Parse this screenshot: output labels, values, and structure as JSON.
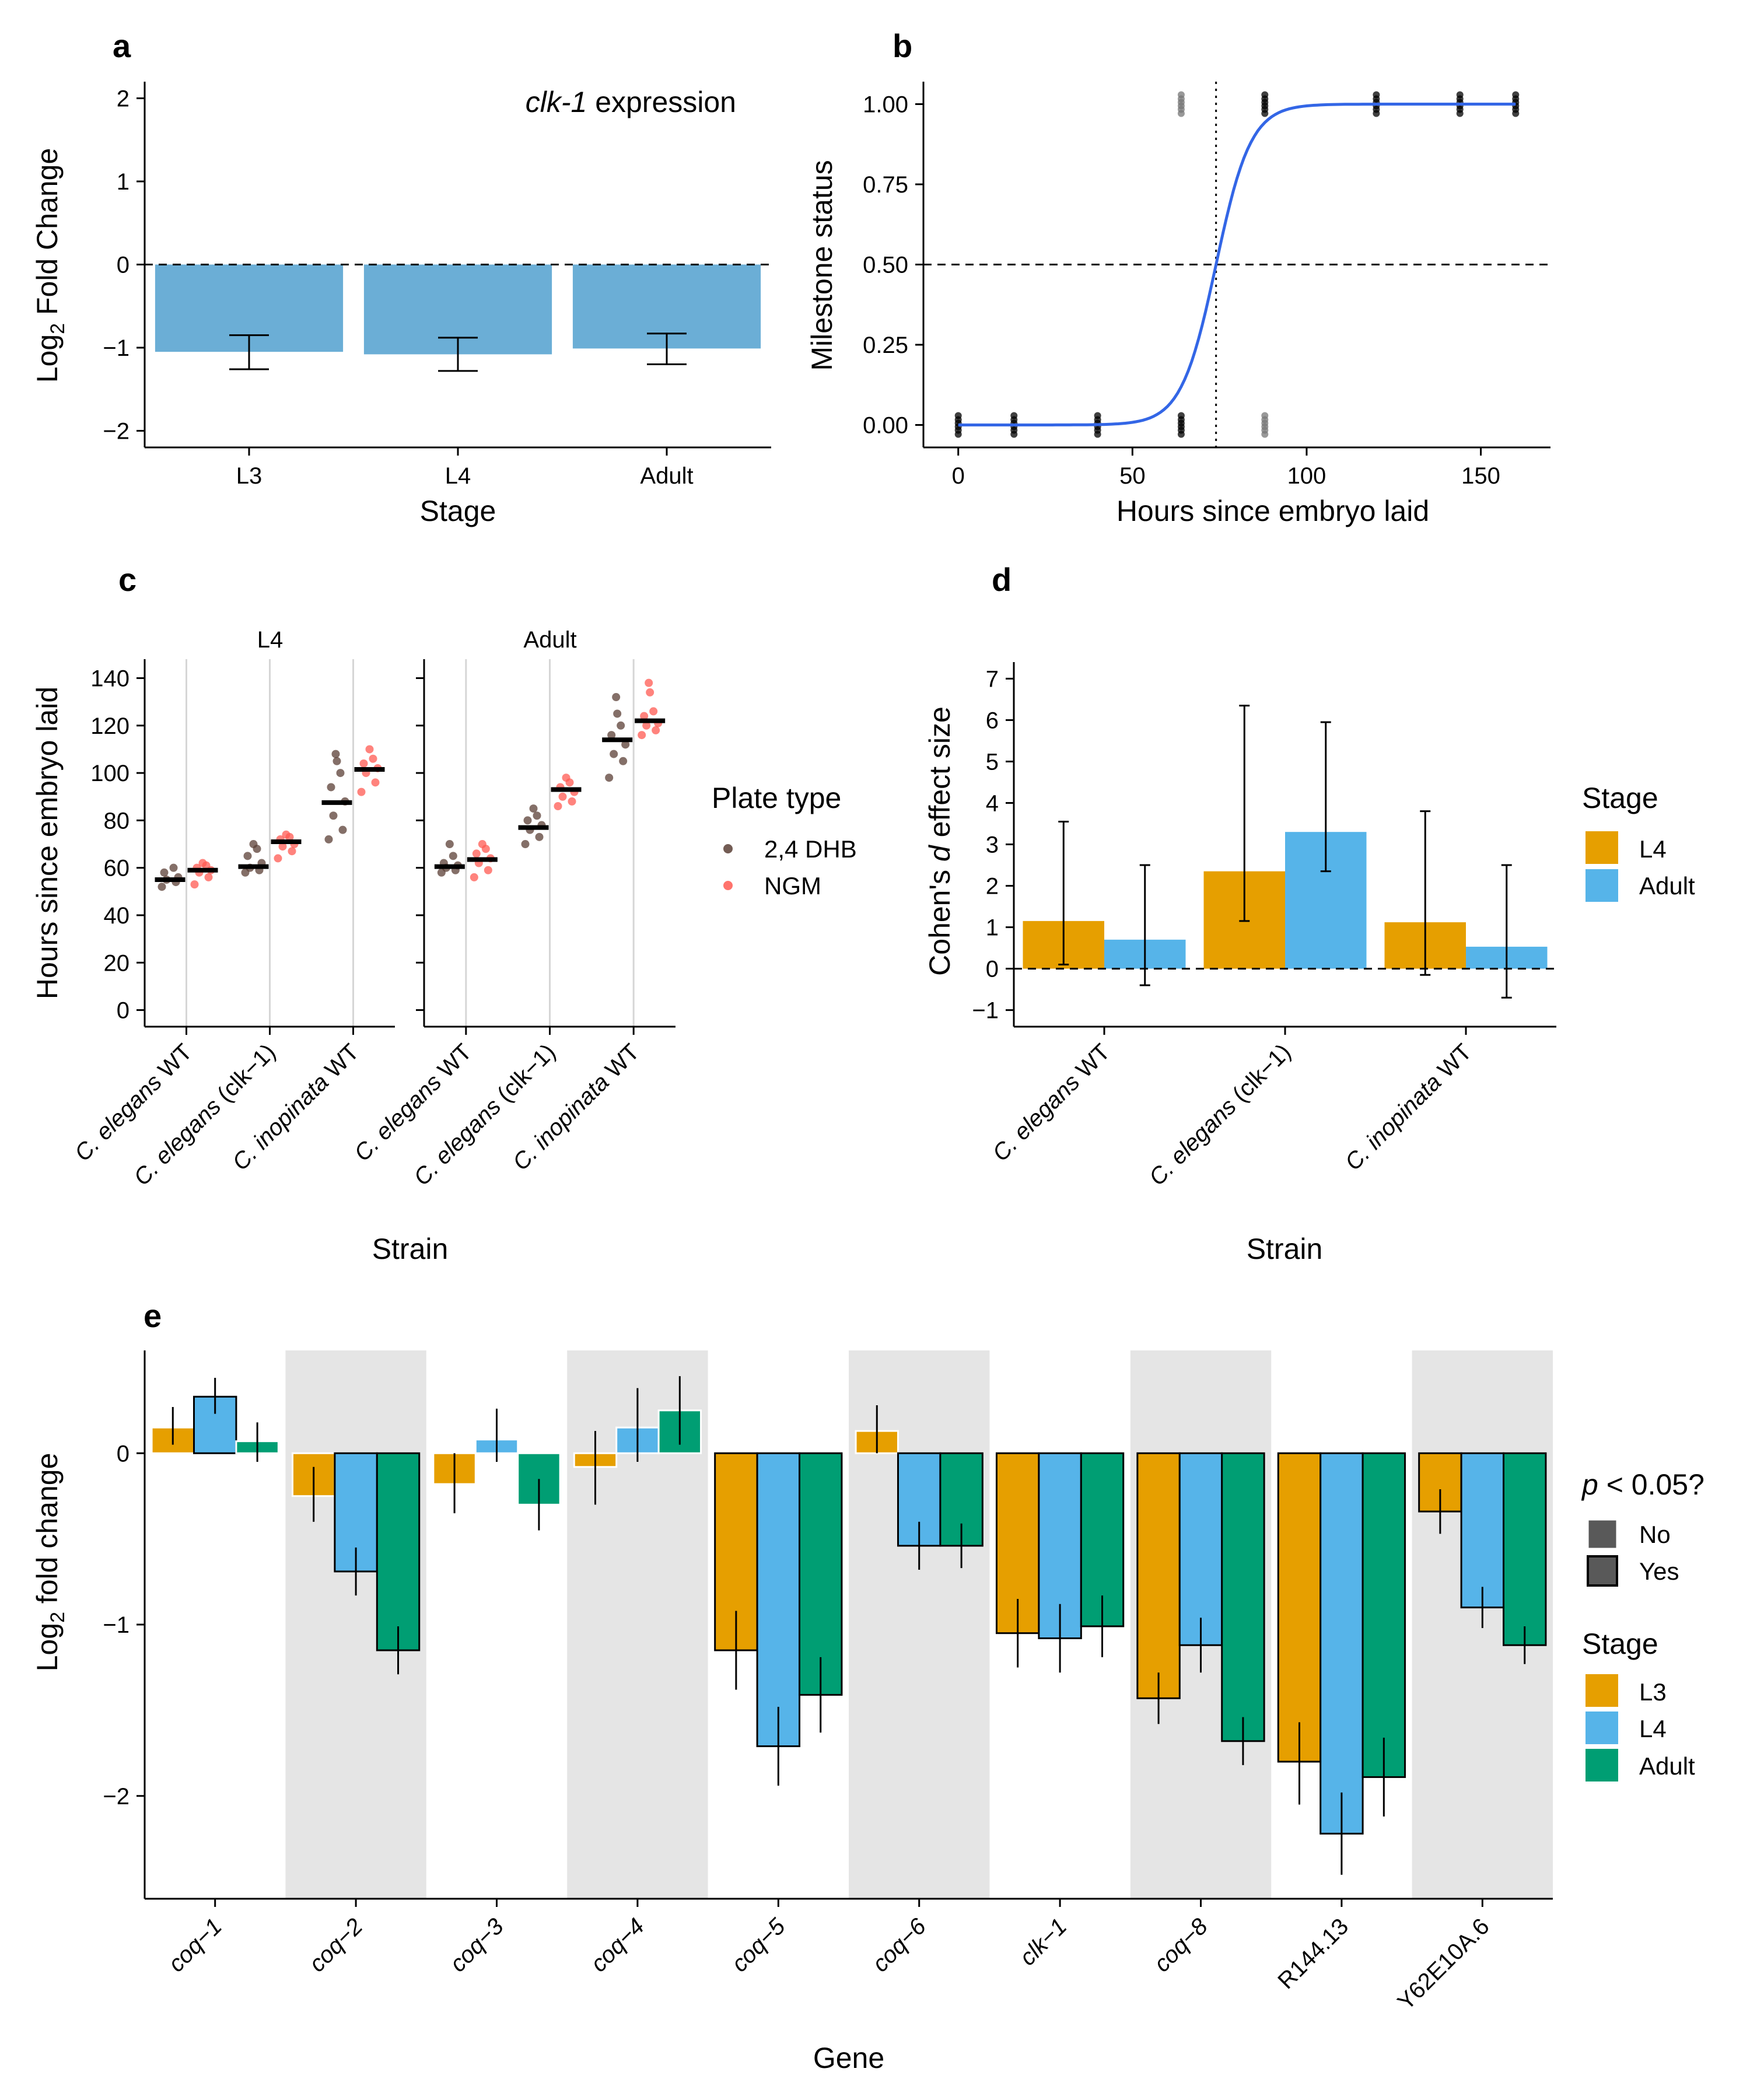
{
  "colors": {
    "L3": "#e69f00",
    "L4": "#56b4e9",
    "Adult": "#009e73",
    "panelA_bar": "#6baed6",
    "logistic": "#3366e6",
    "dhb": "#5b3f36",
    "ngm": "#ff5a52",
    "band": "#e5e5e5"
  },
  "chart_data": [
    {
      "panel": "a",
      "type": "bar",
      "panel_label": "a",
      "annotation_italic": "clk-1",
      "annotation_rest": " expression",
      "xlabel": "Stage",
      "ylabel_main": "Log",
      "ylabel_sub": "2",
      "ylabel_rest": " Fold Change",
      "categories": [
        "L3",
        "L4",
        "Adult"
      ],
      "values": [
        -1.05,
        -1.08,
        -1.01
      ],
      "err_low": [
        -1.26,
        -1.28,
        -1.2
      ],
      "err_high": [
        -0.85,
        -0.88,
        -0.83
      ],
      "ylim": [
        -2.2,
        2.2
      ],
      "yticks": [
        "2",
        "1",
        "0",
        "−1",
        "−2"
      ],
      "ytick_values": [
        2,
        1,
        0,
        -1,
        -2
      ],
      "reference_line": 0
    },
    {
      "panel": "b",
      "type": "scatter",
      "panel_label": "b",
      "xlabel": "Hours since embryo laid",
      "ylabel": "Milestone status",
      "xlim": [
        -10,
        170
      ],
      "ylim": [
        -0.07,
        1.07
      ],
      "xticks": [
        "0",
        "50",
        "100",
        "150"
      ],
      "xtick_values": [
        0,
        50,
        100,
        150
      ],
      "yticks": [
        "0.00",
        "0.25",
        "0.50",
        "0.75",
        "1.00"
      ],
      "ytick_values": [
        0,
        0.25,
        0.5,
        0.75,
        1
      ],
      "points_zero_x": [
        0,
        16,
        40,
        64,
        88
      ],
      "points_one_x": [
        64,
        88,
        120,
        144,
        160
      ],
      "midpoint_x": 74,
      "logistic_slope": 0.2,
      "reference_y": 0.5
    },
    {
      "panel": "c",
      "type": "scatter",
      "panel_label": "c",
      "facets": [
        "L4",
        "Adult"
      ],
      "strains": [
        {
          "species": "C. elegans",
          "suffix": " WT"
        },
        {
          "species": "C. elegans",
          "suffix": " (clk−1)"
        },
        {
          "species": "C. inopinata",
          "suffix": " WT"
        }
      ],
      "xlabel": "Strain",
      "ylabel": "Hours since embryo laid",
      "ylim": [
        -7,
        148
      ],
      "yticks": [
        "0",
        "20",
        "40",
        "60",
        "80",
        "100",
        "120",
        "140"
      ],
      "ytick_values": [
        0,
        20,
        40,
        60,
        80,
        100,
        120,
        140
      ],
      "legend_title": "Plate type",
      "legend_items": [
        "2,4 DHB",
        "NGM"
      ],
      "means": {
        "L4": {
          "DHB": [
            55,
            60.5,
            87.5
          ],
          "NGM": [
            59,
            71,
            101.5
          ]
        },
        "Adult": {
          "DHB": [
            60.5,
            77,
            114
          ],
          "NGM": [
            63.5,
            93,
            122
          ]
        }
      },
      "points": {
        "L4": {
          "DHB": [
            [
              52,
              54,
              55,
              56,
              58,
              60
            ],
            [
              58,
              59,
              60,
              62,
              65,
              68,
              70
            ],
            [
              72,
              76,
              82,
              88,
              94,
              100,
              105,
              108
            ]
          ],
          "NGM": [
            [
              53,
              56,
              58,
              59,
              60,
              61,
              62
            ],
            [
              64,
              67,
              69,
              70,
              72,
              73,
              74
            ],
            [
              92,
              96,
              100,
              102,
              104,
              106,
              110
            ]
          ]
        },
        "Adult": {
          "DHB": [
            [
              58,
              59,
              60,
              61,
              62,
              65,
              70
            ],
            [
              70,
              73,
              76,
              78,
              80,
              82,
              85
            ],
            [
              98,
              105,
              108,
              112,
              116,
              120,
              125,
              132
            ]
          ],
          "NGM": [
            [
              56,
              59,
              62,
              64,
              66,
              68,
              70
            ],
            [
              86,
              88,
              90,
              92,
              94,
              96,
              98
            ],
            [
              116,
              118,
              120,
              121,
              124,
              126,
              134,
              138
            ]
          ]
        }
      }
    },
    {
      "panel": "d",
      "type": "bar",
      "panel_label": "d",
      "strains": [
        {
          "species": "C. elegans",
          "suffix": " WT"
        },
        {
          "species": "C. elegans",
          "suffix": " (clk−1)"
        },
        {
          "species": "C. inopinata",
          "suffix": " WT"
        }
      ],
      "xlabel": "Strain",
      "ylabel_pre": "Cohen's ",
      "ylabel_ital": "d",
      "ylabel_post": " effect size",
      "ylim": [
        -1.4,
        7.4
      ],
      "yticks": [
        "7",
        "6",
        "5",
        "4",
        "3",
        "2",
        "1",
        "0",
        "−1"
      ],
      "ytick_values": [
        7,
        6,
        5,
        4,
        3,
        2,
        1,
        0,
        -1
      ],
      "legend_title": "Stage",
      "legend_items": [
        "L4",
        "Adult"
      ],
      "series": [
        {
          "name": "L4",
          "values": [
            1.15,
            2.35,
            1.12
          ],
          "err_low": [
            0.1,
            1.15,
            -0.15
          ],
          "err_high": [
            3.55,
            6.35,
            3.8
          ]
        },
        {
          "name": "Adult",
          "values": [
            0.7,
            3.3,
            0.53
          ],
          "err_low": [
            -0.4,
            2.35,
            -0.7
          ],
          "err_high": [
            2.5,
            5.95,
            2.5
          ]
        }
      ],
      "reference_line": 0
    },
    {
      "panel": "e",
      "type": "bar",
      "panel_label": "e",
      "genes": [
        {
          "name": "coq−1",
          "italic": true
        },
        {
          "name": "coq−2",
          "italic": true
        },
        {
          "name": "coq−3",
          "italic": true
        },
        {
          "name": "coq−4",
          "italic": true
        },
        {
          "name": "coq−5",
          "italic": true
        },
        {
          "name": "coq−6",
          "italic": true
        },
        {
          "name": "clk−1",
          "italic": true
        },
        {
          "name": "coq−8",
          "italic": true
        },
        {
          "name": "R144.13",
          "italic": false
        },
        {
          "name": "Y62E10A.6",
          "italic": false
        }
      ],
      "xlabel": "Gene",
      "ylabel_main": "Log",
      "ylabel_sub": "2",
      "ylabel_rest": " fold change",
      "ylim": [
        -2.6,
        0.6
      ],
      "yticks": [
        "0",
        "−1",
        "−2"
      ],
      "ytick_values": [
        0,
        -1,
        -2
      ],
      "series": [
        {
          "name": "L3",
          "values": [
            0.15,
            -0.25,
            -0.18,
            -0.08,
            -1.15,
            0.13,
            -1.05,
            -1.43,
            -1.8,
            -0.34
          ],
          "err_low": [
            0.05,
            -0.4,
            -0.35,
            -0.3,
            -1.38,
            0.0,
            -1.25,
            -1.58,
            -2.05,
            -0.47
          ],
          "err_high": [
            0.27,
            -0.08,
            0.0,
            0.13,
            -0.92,
            0.28,
            -0.85,
            -1.28,
            -1.57,
            -0.21
          ],
          "significant": [
            false,
            false,
            false,
            false,
            true,
            false,
            true,
            true,
            true,
            true
          ]
        },
        {
          "name": "L4",
          "values": [
            0.33,
            -0.69,
            0.08,
            0.15,
            -1.71,
            -0.54,
            -1.08,
            -1.12,
            -2.22,
            -0.9
          ],
          "err_low": [
            0.23,
            -0.83,
            -0.05,
            -0.05,
            -1.94,
            -0.68,
            -1.28,
            -1.28,
            -2.46,
            -1.02
          ],
          "err_high": [
            0.44,
            -0.55,
            0.26,
            0.38,
            -1.48,
            -0.4,
            -0.88,
            -0.96,
            -1.98,
            -0.78
          ],
          "significant": [
            true,
            true,
            false,
            false,
            true,
            true,
            true,
            true,
            true,
            true
          ]
        },
        {
          "name": "Adult",
          "values": [
            0.07,
            -1.15,
            -0.3,
            0.25,
            -1.41,
            -0.54,
            -1.01,
            -1.68,
            -1.89,
            -1.12
          ],
          "err_low": [
            -0.05,
            -1.29,
            -0.45,
            0.05,
            -1.63,
            -0.67,
            -1.19,
            -1.82,
            -2.12,
            -1.23
          ],
          "err_high": [
            0.18,
            -1.01,
            -0.15,
            0.45,
            -1.19,
            -0.41,
            -0.83,
            -1.54,
            -1.66,
            -1.01
          ],
          "significant": [
            false,
            true,
            false,
            false,
            true,
            true,
            true,
            true,
            true,
            true
          ]
        }
      ],
      "shaded_genes": [
        1,
        3,
        5,
        7,
        9
      ],
      "legend_sig_title_ital": "p",
      "legend_sig_title_rest": " < 0.05?",
      "legend_sig_items": [
        "No",
        "Yes"
      ],
      "legend_stage_title": "Stage",
      "legend_stage_items": [
        "L3",
        "L4",
        "Adult"
      ]
    }
  ]
}
